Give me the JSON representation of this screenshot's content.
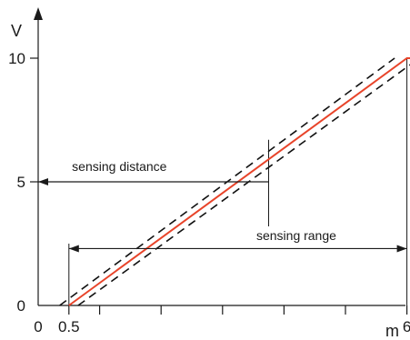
{
  "chart_data": {
    "type": "line",
    "title": "",
    "xlabel": "m",
    "ylabel": "V",
    "xlim": [
      0,
      7.2
    ],
    "ylim": [
      0,
      11.6
    ],
    "x_ticks": [
      0,
      0.5,
      1,
      2,
      3,
      4,
      5,
      6
    ],
    "x_tick_labels": [
      "0",
      "0.5",
      "",
      "",
      "",
      "",
      "",
      "6"
    ],
    "y_ticks": [
      0,
      5,
      10
    ],
    "y_tick_labels": [
      "0",
      "5",
      "10"
    ],
    "grid": false,
    "legend": "none",
    "series": [
      {
        "style": "solid",
        "color": "#e8442a",
        "x": [
          0.5,
          6,
          7.1
        ],
        "y": [
          0,
          10,
          10
        ]
      },
      {
        "style": "dashed",
        "color": "#111111",
        "x": [
          0.35,
          5.8
        ],
        "y": [
          0,
          10
        ]
      },
      {
        "style": "dashed",
        "color": "#111111",
        "x": [
          0.65,
          6.2
        ],
        "y": [
          0,
          10
        ]
      }
    ],
    "annotations": [
      {
        "label": "sensing distance",
        "kind": "arrow-left",
        "x_start": 0,
        "x_end": 3.75,
        "y": 5,
        "label_x": 0.55,
        "label_y": 5.45
      },
      {
        "label": "sensing range",
        "kind": "arrow-both",
        "x_start": 0.5,
        "x_end": 6,
        "y": 2.3,
        "label_x": 3.55,
        "label_y": 2.65
      }
    ],
    "reference_lines": [
      {
        "orientation": "vertical",
        "x": 0.5,
        "y_from": 0,
        "y_to": 2.5
      },
      {
        "orientation": "vertical",
        "x": 6,
        "y_from": 0,
        "y_to": 10
      },
      {
        "orientation": "vertical",
        "x": 3.75,
        "y_from": 3.2,
        "y_to": 6.7
      }
    ]
  }
}
